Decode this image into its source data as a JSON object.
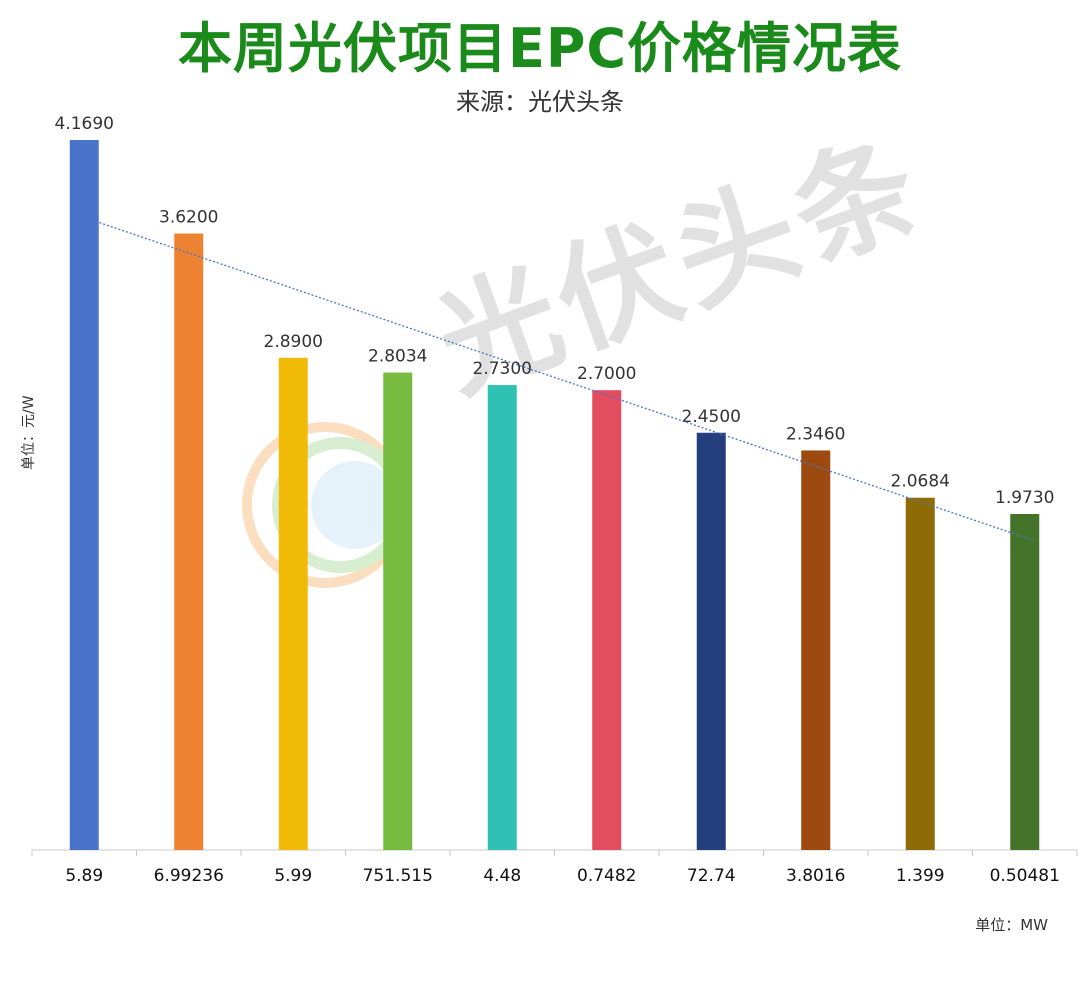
{
  "chart_data": {
    "type": "bar",
    "title": "本周光伏项目EPC价格情况表",
    "subtitle": "来源：光伏头条",
    "ylabel": "单位：元/W",
    "xlabel": "单位：MW",
    "categories": [
      "5.89",
      "6.99236",
      "5.99",
      "751.515",
      "4.48",
      "0.7482",
      "72.74",
      "3.8016",
      "1.399",
      "0.50481"
    ],
    "values": [
      4.169,
      3.62,
      2.89,
      2.8034,
      2.73,
      2.7,
      2.45,
      2.346,
      2.0684,
      1.973
    ],
    "value_labels": [
      "4.1690",
      "3.6200",
      "2.8900",
      "2.8034",
      "2.7300",
      "2.7000",
      "2.4500",
      "2.3460",
      "2.0684",
      "1.9730"
    ],
    "colors": [
      "#4a74c9",
      "#ee8233",
      "#f1ba06",
      "#78bb41",
      "#2fc1b4",
      "#e24e60",
      "#253f7e",
      "#9c4a10",
      "#8f6b05",
      "#447329"
    ],
    "ylim": [
      0,
      4.169
    ],
    "trendline": true,
    "trendline_color": "#4a74c9",
    "grid": false
  },
  "watermark": "光伏头条"
}
